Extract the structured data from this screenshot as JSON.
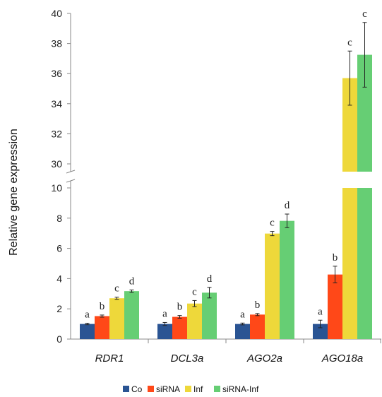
{
  "chart_data": {
    "type": "bar",
    "ylabel": "Relative gene expression",
    "categories": [
      "RDR1",
      "DCL3a",
      "AGO2a",
      "AGO18a"
    ],
    "series": [
      {
        "name": "Co",
        "color": "#2A5493",
        "values": [
          1.0,
          1.0,
          1.0,
          1.0
        ],
        "errors": [
          0.05,
          0.1,
          0.06,
          0.25
        ],
        "letters": [
          "a",
          "a",
          "a",
          "a"
        ]
      },
      {
        "name": "siRNA",
        "color": "#FF4818",
        "values": [
          1.52,
          1.47,
          1.62,
          4.27
        ],
        "errors": [
          0.07,
          0.09,
          0.07,
          0.55
        ],
        "letters": [
          "b",
          "b",
          "b",
          "b"
        ]
      },
      {
        "name": "Inf",
        "color": "#EED83A",
        "values": [
          2.7,
          2.35,
          6.98,
          35.7
        ],
        "errors": [
          0.07,
          0.2,
          0.14,
          1.8
        ],
        "letters": [
          "c",
          "c",
          "c",
          "c"
        ]
      },
      {
        "name": "siRNA-Inf",
        "color": "#66CE74",
        "values": [
          3.17,
          3.07,
          7.82,
          37.25
        ],
        "errors": [
          0.08,
          0.35,
          0.45,
          2.15
        ],
        "letters": [
          "d",
          "d",
          "d",
          "c"
        ]
      }
    ],
    "axis_break": {
      "lower_range": [
        0,
        10
      ],
      "upper_range": [
        29,
        40
      ]
    },
    "lower_ticks": [
      0,
      2,
      4,
      6,
      8,
      10
    ],
    "upper_ticks": [
      30,
      32,
      34,
      36,
      38,
      40
    ],
    "legend_position": "bottom",
    "grid": false
  }
}
